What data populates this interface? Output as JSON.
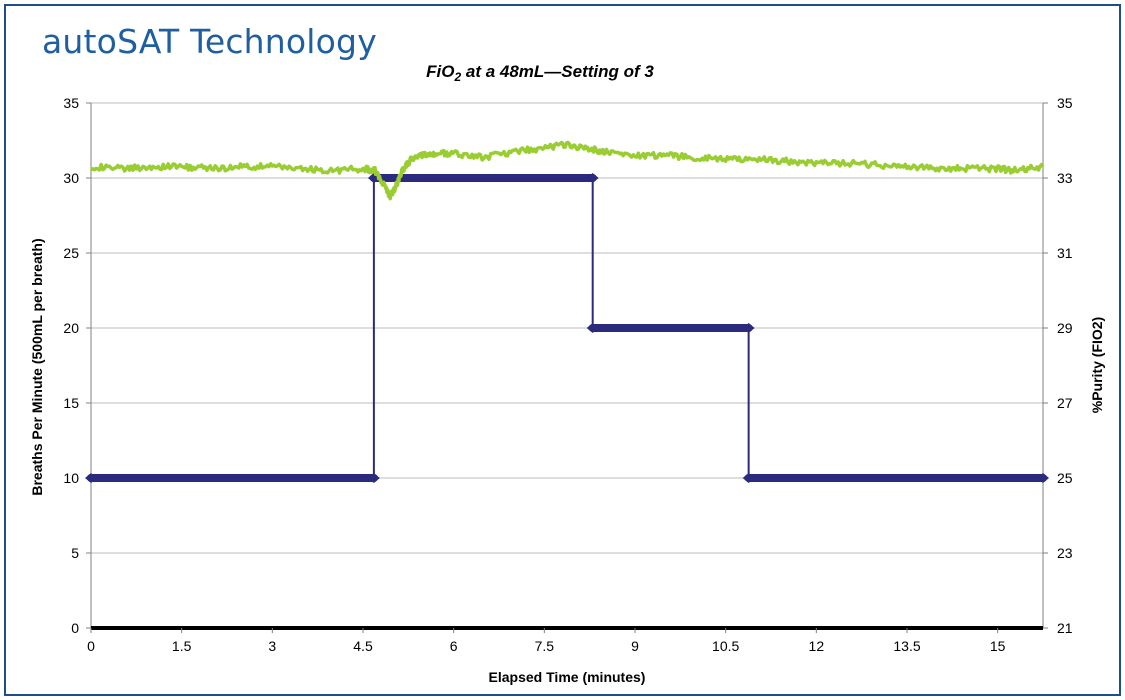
{
  "brand": {
    "title": "autoSAT Technology"
  },
  "colors": {
    "frame": "#1d4e89",
    "brand": "#1f5fa0",
    "bpm_series": "#2b2b7d",
    "fio2_series": "#9acd32"
  },
  "chart_data": {
    "type": "line",
    "title": "FiO2 at a 48mL—Setting of 3",
    "title_parts": {
      "prefix": "FiO",
      "subscript": "2",
      "suffix": " at a 48mL—Setting of 3"
    },
    "xlabel": "Elapsed Time (minutes)",
    "ylabel": "Breaths Per Minute (500mL per breath)",
    "y2label": "%Purity (FIO2)",
    "xlim": [
      0,
      15.75
    ],
    "ylim": [
      0,
      35
    ],
    "y2lim": [
      21,
      35
    ],
    "x_ticks": [
      "0",
      "1.5",
      "3",
      "4.5",
      "6",
      "7.5",
      "9",
      "10.5",
      "12",
      "13.5",
      "15"
    ],
    "y_ticks": [
      "0",
      "5",
      "10",
      "15",
      "20",
      "25",
      "30",
      "35"
    ],
    "y2_ticks": [
      "21",
      "23",
      "25",
      "27",
      "29",
      "31",
      "33",
      "35"
    ],
    "grid": "horizontal",
    "legend": "none",
    "series": [
      {
        "axis": "left",
        "style": "step",
        "x": [
          0,
          4.68,
          4.68,
          8.3,
          8.3,
          10.88,
          10.88,
          15.75
        ],
        "values": [
          10,
          10,
          30,
          30,
          20,
          20,
          10,
          10
        ]
      },
      {
        "axis": "right",
        "style": "line",
        "x": [
          0,
          0.5,
          1.0,
          1.5,
          2.0,
          2.5,
          3.0,
          3.5,
          4.0,
          4.5,
          4.7,
          4.85,
          4.95,
          5.05,
          5.15,
          5.3,
          5.5,
          5.7,
          6.0,
          6.5,
          7.0,
          7.5,
          7.8,
          8.2,
          8.5,
          9.0,
          9.5,
          10.0,
          10.5,
          11.0,
          11.5,
          12.0,
          12.5,
          13.0,
          13.5,
          14.0,
          14.5,
          15.0,
          15.3,
          15.75
        ],
        "values": [
          33.3,
          33.25,
          33.3,
          33.3,
          33.25,
          33.3,
          33.3,
          33.25,
          33.2,
          33.25,
          33.2,
          32.8,
          32.5,
          32.8,
          33.2,
          33.5,
          33.6,
          33.65,
          33.65,
          33.55,
          33.7,
          33.8,
          33.9,
          33.8,
          33.7,
          33.6,
          33.6,
          33.55,
          33.5,
          33.5,
          33.45,
          33.4,
          33.4,
          33.35,
          33.3,
          33.25,
          33.25,
          33.25,
          33.2,
          33.3
        ]
      }
    ]
  }
}
